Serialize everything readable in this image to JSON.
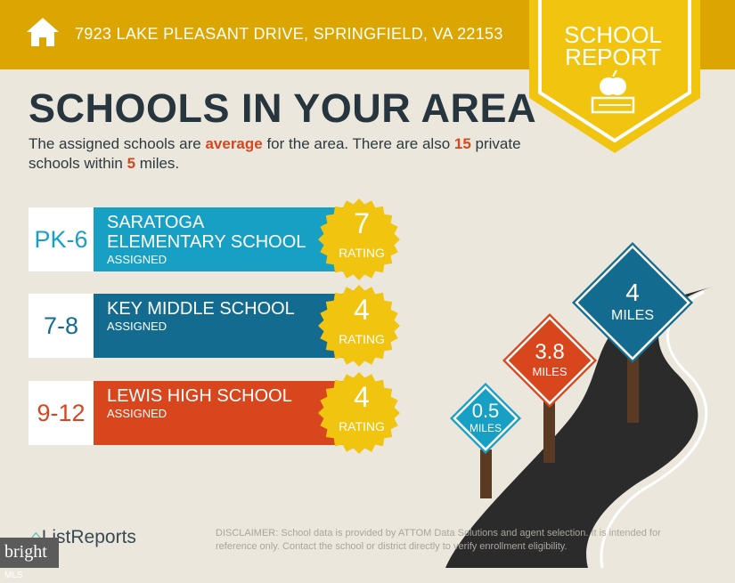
{
  "header": {
    "address": "7923 LAKE PLEASANT DRIVE, SPRINGFIELD, VA 22153",
    "icon": "home-icon"
  },
  "badge": {
    "line1": "SCHOOL",
    "line2": "REPORT",
    "icon": "apple-on-book-icon"
  },
  "title": "SCHOOLS IN YOUR AREA",
  "summary": {
    "p1": "The assigned schools are ",
    "quality": "average",
    "p2": " for the area. There are also ",
    "count": "15",
    "p3": " private schools within ",
    "miles": "5",
    "p4": " miles."
  },
  "schools": [
    {
      "grades": "PK-6",
      "name1": "SARATOGA",
      "name2": "ELEMENTARY SCHOOL",
      "status": "ASSIGNED",
      "rating": "7",
      "rating_label": "RATING",
      "color": "#17a0c4"
    },
    {
      "grades": "7-8",
      "name1": "KEY MIDDLE SCHOOL",
      "name2": "",
      "status": "ASSIGNED",
      "rating": "4",
      "rating_label": "RATING",
      "color": "#136c90"
    },
    {
      "grades": "9-12",
      "name1": "LEWIS HIGH SCHOOL",
      "name2": "",
      "status": "ASSIGNED",
      "rating": "4",
      "rating_label": "RATING",
      "color": "#d8461d"
    }
  ],
  "signs": [
    {
      "value": "0.5",
      "unit": "MILES",
      "color": "#17a0c4"
    },
    {
      "value": "3.8",
      "unit": "MILES",
      "color": "#d8461d"
    },
    {
      "value": "4",
      "unit": "MILES",
      "color": "#136c90"
    }
  ],
  "footer": {
    "brand": "ListReports",
    "mls_brand": "bright",
    "mls_suffix": "MLS",
    "disclaimer_label": "DISCLAIMER:",
    "disclaimer": " School data is provided by ATTOM Data Solutions and agent selection. It is intended for reference only. Contact the school or district directly to verify enrollment eligibility."
  },
  "colors": {
    "header": "#dca602",
    "badge": "#f1c40f",
    "rating_star": "#f1c40f",
    "title": "#27363e",
    "highlight": "#d5481f"
  }
}
